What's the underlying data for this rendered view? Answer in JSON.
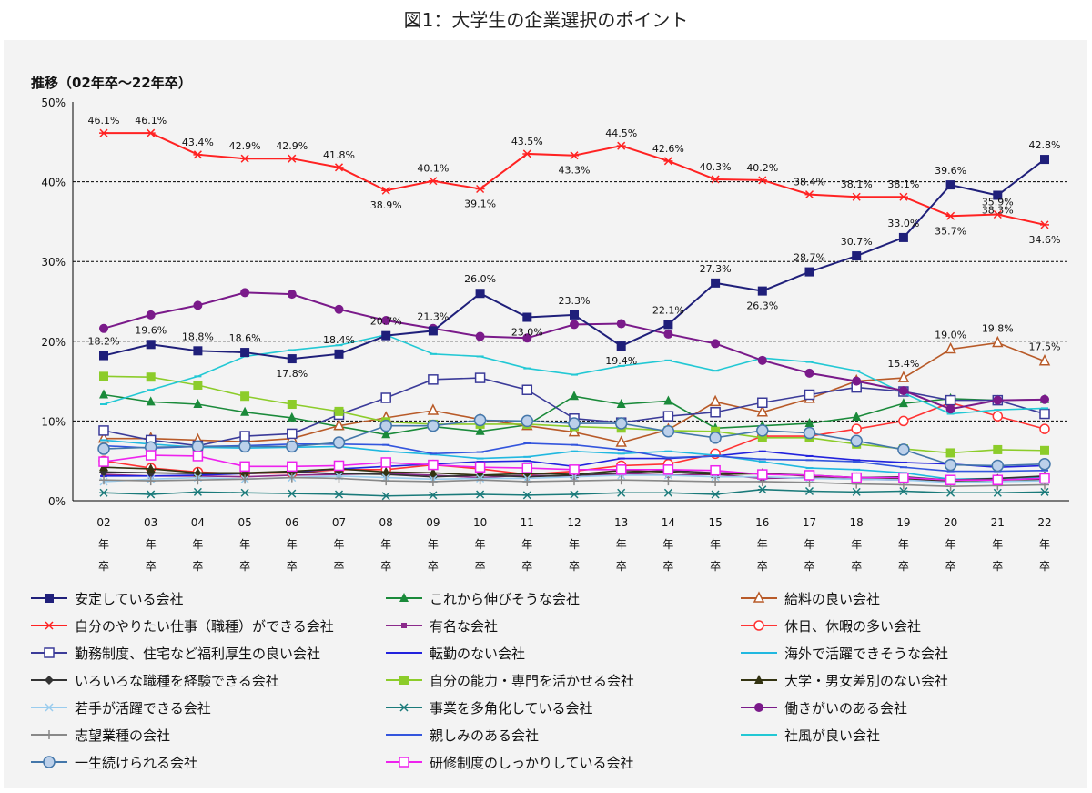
{
  "figure_caption": "図1：大学生の企業選択のポイント",
  "chart_data": {
    "type": "line",
    "title": "推移（02年卒～22年卒）",
    "xlabel": "",
    "ylabel": "",
    "ylim": [
      0,
      50
    ],
    "y_ticks": [
      "0%",
      "10%",
      "20%",
      "30%",
      "40%",
      "50%"
    ],
    "categories": [
      "02",
      "03",
      "04",
      "05",
      "06",
      "07",
      "08",
      "09",
      "10",
      "11",
      "12",
      "13",
      "14",
      "15",
      "16",
      "17",
      "18",
      "19",
      "20",
      "21",
      "22"
    ],
    "category_suffix": [
      "年",
      "卒"
    ],
    "legend_position": "bottom",
    "series": [
      {
        "name": "安定している会社",
        "color": "#1f1f7a",
        "marker": "square",
        "values": [
          18.2,
          19.6,
          18.8,
          18.6,
          17.8,
          18.4,
          20.7,
          21.3,
          26.0,
          23.0,
          23.3,
          19.4,
          22.1,
          27.3,
          26.3,
          28.7,
          30.7,
          33.0,
          39.6,
          38.3,
          42.8
        ]
      },
      {
        "name": "これから伸びそうな会社",
        "color": "#1a8a3a",
        "marker": "triangle",
        "values": [
          13.3,
          12.4,
          12.1,
          11.1,
          10.4,
          9.3,
          8.3,
          9.3,
          8.7,
          9.5,
          13.1,
          12.1,
          12.5,
          9.1,
          9.4,
          9.7,
          10.5,
          12.2,
          12.8,
          12.6,
          12.7
        ]
      },
      {
        "name": "給料の良い会社",
        "color": "#b85a28",
        "marker": "triangle-open",
        "values": [
          7.8,
          7.8,
          7.6,
          7.4,
          7.8,
          9.4,
          10.4,
          11.3,
          10.2,
          9.4,
          8.6,
          7.3,
          8.9,
          12.4,
          11.1,
          12.8,
          15.0,
          15.4,
          19.0,
          19.8,
          17.5
        ]
      },
      {
        "name": "自分のやりたい仕事（職種）ができる会社",
        "color": "#ff2222",
        "marker": "star",
        "values": [
          46.1,
          46.1,
          43.4,
          42.9,
          42.9,
          41.8,
          38.9,
          40.1,
          39.1,
          43.5,
          43.3,
          44.5,
          42.6,
          40.3,
          40.2,
          38.4,
          38.1,
          38.1,
          35.7,
          35.9,
          34.6
        ]
      },
      {
        "name": "有名な会社",
        "color": "#8b2a8b",
        "marker": "square-small",
        "values": [
          3.3,
          3.1,
          3.1,
          3.0,
          3.2,
          3.3,
          3.4,
          3.2,
          2.9,
          3.2,
          3.0,
          3.4,
          3.2,
          3.3,
          2.8,
          2.9,
          2.7,
          2.6,
          2.5,
          2.6,
          2.9
        ]
      },
      {
        "name": "休日、休暇の多い会社",
        "color": "#ff3333",
        "marker": "circle-open",
        "values": [
          5.0,
          4.1,
          3.6,
          3.4,
          3.5,
          3.9,
          3.9,
          4.5,
          4.0,
          3.3,
          3.7,
          4.4,
          4.6,
          5.9,
          8.1,
          8.1,
          9.0,
          10.0,
          12.3,
          10.6,
          9.0
        ]
      },
      {
        "name": "勤務制度、住宅など福利厚生の良い会社",
        "color": "#3b3b99",
        "marker": "square-open",
        "values": [
          8.8,
          7.6,
          6.9,
          8.1,
          8.4,
          10.8,
          12.9,
          15.2,
          15.4,
          13.9,
          10.3,
          9.8,
          10.6,
          11.1,
          12.3,
          13.3,
          14.2,
          13.7,
          12.6,
          12.6,
          10.9
        ]
      },
      {
        "name": "転勤のない会社",
        "color": "#2222dd",
        "marker": "dash",
        "values": [
          3.1,
          3.1,
          3.2,
          3.4,
          3.6,
          4.0,
          4.3,
          4.6,
          4.9,
          5.0,
          4.3,
          5.3,
          5.3,
          5.6,
          6.2,
          5.6,
          5.1,
          4.8,
          4.6,
          4.2,
          4.4
        ]
      },
      {
        "name": "海外で活躍できそうな会社",
        "color": "#20b8e0",
        "marker": "dash",
        "values": [
          7.6,
          7.1,
          6.7,
          6.6,
          6.7,
          6.8,
          6.2,
          5.8,
          5.3,
          5.5,
          6.2,
          5.9,
          6.2,
          5.7,
          4.9,
          4.1,
          3.9,
          3.5,
          2.7,
          2.8,
          3.0
        ]
      },
      {
        "name": "いろいろな職種を経験できる会社",
        "color": "#333333",
        "marker": "diamond",
        "values": [
          3.6,
          3.5,
          3.4,
          3.4,
          3.6,
          3.4,
          3.3,
          3.0,
          3.2,
          3.0,
          3.2,
          3.5,
          3.8,
          3.5,
          3.4,
          3.2,
          2.9,
          3.0,
          2.6,
          2.8,
          3.1
        ]
      },
      {
        "name": "自分の能力・専門を活かせる会社",
        "color": "#8ccc2a",
        "marker": "square",
        "values": [
          15.6,
          15.5,
          14.5,
          13.1,
          12.1,
          11.2,
          9.9,
          9.6,
          9.6,
          9.6,
          9.3,
          9.1,
          8.8,
          8.7,
          7.9,
          7.9,
          7.1,
          6.5,
          6.0,
          6.4,
          6.3
        ]
      },
      {
        "name": "大学・男女差別のない会社",
        "color": "#333311",
        "marker": "triangle",
        "values": [
          4.2,
          4.0,
          3.5,
          3.5,
          3.7,
          4.0,
          3.6,
          3.5,
          3.2,
          3.4,
          3.3,
          3.8,
          3.6,
          3.3,
          3.4,
          3.1,
          2.9,
          2.8,
          2.5,
          2.6,
          2.7
        ]
      },
      {
        "name": "若手が活躍できる会社",
        "color": "#99ccee",
        "marker": "x",
        "values": [
          2.4,
          2.7,
          2.9,
          2.7,
          2.9,
          3.1,
          2.9,
          2.7,
          2.8,
          2.8,
          3.0,
          3.2,
          3.2,
          3.0,
          3.0,
          2.8,
          2.7,
          2.6,
          2.3,
          2.4,
          2.5
        ]
      },
      {
        "name": "事業を多角化している会社",
        "color": "#1a7a7a",
        "marker": "star",
        "values": [
          1.0,
          0.8,
          1.1,
          1.0,
          0.9,
          0.8,
          0.6,
          0.7,
          0.8,
          0.7,
          0.8,
          1.0,
          1.0,
          0.8,
          1.4,
          1.2,
          1.1,
          1.2,
          1.0,
          1.0,
          1.1
        ]
      },
      {
        "name": "働きがいのある会社",
        "color": "#7a1a8a",
        "marker": "circle",
        "values": [
          21.6,
          23.3,
          24.5,
          26.1,
          25.9,
          24.0,
          22.6,
          21.6,
          20.6,
          20.4,
          22.1,
          22.2,
          20.9,
          19.7,
          17.6,
          16.0,
          15.0,
          13.8,
          11.5,
          12.6,
          12.7
        ]
      },
      {
        "name": "志望業種の会社",
        "color": "#888888",
        "marker": "plus",
        "values": [
          2.6,
          2.5,
          2.6,
          2.7,
          2.9,
          2.8,
          2.5,
          2.4,
          2.6,
          2.4,
          2.5,
          2.6,
          2.5,
          2.4,
          2.4,
          2.3,
          2.1,
          2.0,
          1.8,
          1.9,
          2.0
        ]
      },
      {
        "name": "親しみのある会社",
        "color": "#3355dd",
        "marker": "dash",
        "values": [
          6.9,
          6.6,
          6.8,
          6.9,
          7.1,
          7.1,
          7.0,
          5.9,
          6.1,
          7.2,
          7.0,
          6.4,
          5.4,
          5.6,
          5.2,
          5.1,
          4.9,
          4.2,
          3.7,
          3.7,
          3.8
        ]
      },
      {
        "name": "社風が良い会社",
        "color": "#22c8d4",
        "marker": "dash",
        "values": [
          12.1,
          13.9,
          15.6,
          18.1,
          18.9,
          19.5,
          20.8,
          18.4,
          18.1,
          16.6,
          15.8,
          16.9,
          17.6,
          16.3,
          17.9,
          17.4,
          16.3,
          13.5,
          10.9,
          11.4,
          11.6
        ]
      },
      {
        "name": "一生続けられる会社",
        "color": "#4477aa",
        "marker": "circle-hatched",
        "values": [
          6.5,
          6.7,
          6.8,
          6.8,
          6.8,
          7.3,
          9.4,
          9.4,
          10.1,
          10.0,
          9.7,
          9.7,
          8.7,
          7.9,
          8.8,
          8.5,
          7.5,
          6.4,
          4.5,
          4.4,
          4.6
        ]
      },
      {
        "name": "研修制度のしっかりしている会社",
        "color": "#ee22ee",
        "marker": "square-open",
        "values": [
          4.9,
          5.7,
          5.6,
          4.3,
          4.3,
          4.4,
          4.8,
          4.5,
          4.2,
          4.1,
          3.9,
          3.9,
          3.9,
          3.8,
          3.3,
          3.2,
          2.9,
          2.9,
          2.6,
          2.6,
          2.8
        ]
      }
    ],
    "data_labels": [
      {
        "series": 0,
        "point": 0,
        "text": "18.2%"
      },
      {
        "series": 0,
        "point": 1,
        "text": "19.6%"
      },
      {
        "series": 0,
        "point": 2,
        "text": "18.8%"
      },
      {
        "series": 0,
        "point": 3,
        "text": "18.6%"
      },
      {
        "series": 0,
        "point": 4,
        "text": "17.8%"
      },
      {
        "series": 0,
        "point": 5,
        "text": "18.4%"
      },
      {
        "series": 0,
        "point": 6,
        "text": "20.7%"
      },
      {
        "series": 0,
        "point": 7,
        "text": "21.3%"
      },
      {
        "series": 0,
        "point": 8,
        "text": "26.0%"
      },
      {
        "series": 0,
        "point": 9,
        "text": "23.0%"
      },
      {
        "series": 0,
        "point": 10,
        "text": "23.3%"
      },
      {
        "series": 0,
        "point": 11,
        "text": "19.4%"
      },
      {
        "series": 0,
        "point": 12,
        "text": "22.1%"
      },
      {
        "series": 0,
        "point": 13,
        "text": "27.3%"
      },
      {
        "series": 0,
        "point": 14,
        "text": "26.3%"
      },
      {
        "series": 0,
        "point": 15,
        "text": "28.7%"
      },
      {
        "series": 0,
        "point": 16,
        "text": "30.7%"
      },
      {
        "series": 0,
        "point": 17,
        "text": "33.0%"
      },
      {
        "series": 0,
        "point": 18,
        "text": "39.6%"
      },
      {
        "series": 0,
        "point": 19,
        "text": "38.3%"
      },
      {
        "series": 0,
        "point": 20,
        "text": "42.8%"
      },
      {
        "series": 3,
        "point": 0,
        "text": "46.1%"
      },
      {
        "series": 3,
        "point": 1,
        "text": "46.1%"
      },
      {
        "series": 3,
        "point": 2,
        "text": "43.4%"
      },
      {
        "series": 3,
        "point": 3,
        "text": "42.9%"
      },
      {
        "series": 3,
        "point": 4,
        "text": "42.9%"
      },
      {
        "series": 3,
        "point": 5,
        "text": "41.8%"
      },
      {
        "series": 3,
        "point": 6,
        "text": "38.9%"
      },
      {
        "series": 3,
        "point": 7,
        "text": "40.1%"
      },
      {
        "series": 3,
        "point": 8,
        "text": "39.1%"
      },
      {
        "series": 3,
        "point": 9,
        "text": "43.5%"
      },
      {
        "series": 3,
        "point": 10,
        "text": "43.3%"
      },
      {
        "series": 3,
        "point": 11,
        "text": "44.5%"
      },
      {
        "series": 3,
        "point": 12,
        "text": "42.6%"
      },
      {
        "series": 3,
        "point": 13,
        "text": "40.3%"
      },
      {
        "series": 3,
        "point": 14,
        "text": "40.2%"
      },
      {
        "series": 3,
        "point": 15,
        "text": "38.4%"
      },
      {
        "series": 3,
        "point": 16,
        "text": "38.1%"
      },
      {
        "series": 3,
        "point": 17,
        "text": "38.1%"
      },
      {
        "series": 3,
        "point": 18,
        "text": "35.7%"
      },
      {
        "series": 3,
        "point": 19,
        "text": "35.9%"
      },
      {
        "series": 3,
        "point": 20,
        "text": "34.6%"
      },
      {
        "series": 2,
        "point": 17,
        "text": "15.4%"
      },
      {
        "series": 2,
        "point": 18,
        "text": "19.0%"
      },
      {
        "series": 2,
        "point": 19,
        "text": "19.8%"
      },
      {
        "series": 2,
        "point": 20,
        "text": "17.5%"
      }
    ]
  }
}
